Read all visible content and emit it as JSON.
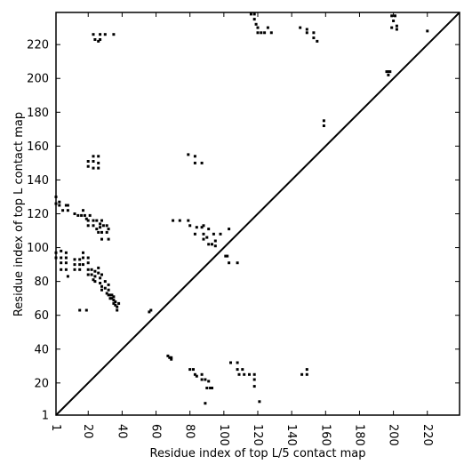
{
  "chart_data": {
    "type": "scatter",
    "xlabel": "Residue index of top L/5 contact map",
    "ylabel": "Residue index of top L contact map",
    "xlim": [
      1,
      239
    ],
    "ylim": [
      1,
      239
    ],
    "x_ticks": [
      1,
      20,
      40,
      60,
      80,
      100,
      120,
      140,
      160,
      180,
      200,
      220
    ],
    "y_ticks": [
      1,
      20,
      40,
      60,
      80,
      100,
      120,
      140,
      160,
      180,
      200,
      220
    ],
    "grid": false,
    "diagonal": true,
    "marker": "square",
    "series": [
      {
        "points": [
          [
            1,
            130
          ],
          [
            1,
            126
          ],
          [
            3,
            127
          ],
          [
            3,
            125
          ],
          [
            5,
            122
          ],
          [
            7,
            125
          ],
          [
            8,
            122
          ],
          [
            8,
            125
          ],
          [
            12,
            120
          ],
          [
            14,
            119
          ],
          [
            16,
            119
          ],
          [
            17,
            122
          ],
          [
            18,
            119
          ],
          [
            19,
            117
          ],
          [
            20,
            116
          ],
          [
            20,
            113
          ],
          [
            21,
            119
          ],
          [
            23,
            116
          ],
          [
            23,
            113
          ],
          [
            25,
            116
          ],
          [
            25,
            111
          ],
          [
            26,
            109
          ],
          [
            27,
            114
          ],
          [
            27,
            112
          ],
          [
            28,
            116
          ],
          [
            28,
            109
          ],
          [
            28,
            105
          ],
          [
            29,
            113
          ],
          [
            31,
            113
          ],
          [
            31,
            109
          ],
          [
            32,
            111
          ],
          [
            32,
            105
          ],
          [
            1,
            97
          ],
          [
            1,
            94
          ],
          [
            4,
            98
          ],
          [
            4,
            94
          ],
          [
            4,
            91
          ],
          [
            4,
            87
          ],
          [
            7,
            97
          ],
          [
            7,
            94
          ],
          [
            7,
            91
          ],
          [
            7,
            87
          ],
          [
            8,
            83
          ],
          [
            12,
            93
          ],
          [
            12,
            90
          ],
          [
            12,
            87
          ],
          [
            15,
            93
          ],
          [
            15,
            90
          ],
          [
            15,
            87
          ],
          [
            17,
            97
          ],
          [
            17,
            94
          ],
          [
            17,
            90
          ],
          [
            20,
            94
          ],
          [
            20,
            91
          ],
          [
            20,
            87
          ],
          [
            20,
            84
          ],
          [
            22,
            87
          ],
          [
            22,
            84
          ],
          [
            23,
            81
          ],
          [
            24,
            86
          ],
          [
            24,
            83
          ],
          [
            24,
            80
          ],
          [
            26,
            88
          ],
          [
            26,
            85
          ],
          [
            27,
            82
          ],
          [
            27,
            79
          ],
          [
            28,
            84
          ],
          [
            28,
            77
          ],
          [
            28,
            75
          ],
          [
            30,
            80
          ],
          [
            30,
            76
          ],
          [
            31,
            73
          ],
          [
            32,
            78
          ],
          [
            32,
            75
          ],
          [
            32,
            72
          ],
          [
            33,
            72
          ],
          [
            33,
            70
          ],
          [
            34,
            72
          ],
          [
            34,
            70
          ],
          [
            35,
            71
          ],
          [
            35,
            69
          ],
          [
            35,
            67
          ],
          [
            36,
            68
          ],
          [
            36,
            66
          ],
          [
            37,
            65
          ],
          [
            37,
            63
          ],
          [
            38,
            67
          ],
          [
            15,
            63
          ],
          [
            19,
            63
          ],
          [
            56,
            62
          ],
          [
            57,
            63
          ],
          [
            20,
            151
          ],
          [
            20,
            148
          ],
          [
            23,
            154
          ],
          [
            23,
            151
          ],
          [
            23,
            147
          ],
          [
            26,
            154
          ],
          [
            26,
            150
          ],
          [
            26,
            147
          ],
          [
            23,
            226
          ],
          [
            24,
            223
          ],
          [
            26,
            222
          ],
          [
            27,
            226
          ],
          [
            27,
            223
          ],
          [
            30,
            226
          ],
          [
            35,
            226
          ],
          [
            79,
            155
          ],
          [
            83,
            154
          ],
          [
            83,
            150
          ],
          [
            87,
            150
          ],
          [
            116,
            238
          ],
          [
            118,
            238
          ],
          [
            118,
            235
          ],
          [
            119,
            232
          ],
          [
            120,
            230
          ],
          [
            120,
            227
          ],
          [
            122,
            227
          ],
          [
            124,
            227
          ],
          [
            126,
            230
          ],
          [
            128,
            227
          ],
          [
            145,
            230
          ],
          [
            149,
            227
          ],
          [
            149,
            229
          ],
          [
            153,
            227
          ],
          [
            153,
            224
          ],
          [
            155,
            222
          ],
          [
            159,
            175
          ],
          [
            159,
            172
          ],
          [
            196,
            204
          ],
          [
            197,
            204
          ],
          [
            198,
            204
          ],
          [
            197,
            202
          ],
          [
            199,
            230
          ],
          [
            199,
            237
          ],
          [
            200,
            234
          ],
          [
            201,
            237
          ],
          [
            202,
            229
          ],
          [
            202,
            231
          ],
          [
            220,
            228
          ],
          [
            70,
            116
          ],
          [
            74,
            116
          ],
          [
            79,
            116
          ],
          [
            80,
            113
          ],
          [
            83,
            108
          ],
          [
            84,
            112
          ],
          [
            87,
            112
          ],
          [
            88,
            113
          ],
          [
            88,
            108
          ],
          [
            88,
            105
          ],
          [
            91,
            111
          ],
          [
            90,
            106
          ],
          [
            91,
            102
          ],
          [
            93,
            102
          ],
          [
            94,
            108
          ],
          [
            95,
            104
          ],
          [
            95,
            101
          ],
          [
            98,
            108
          ],
          [
            103,
            111
          ],
          [
            101,
            95
          ],
          [
            102,
            95
          ],
          [
            103,
            91
          ],
          [
            108,
            91
          ],
          [
            67,
            36
          ],
          [
            68,
            35
          ],
          [
            69,
            35
          ],
          [
            69,
            34
          ],
          [
            80,
            28
          ],
          [
            82,
            28
          ],
          [
            83,
            25
          ],
          [
            84,
            24
          ],
          [
            87,
            25
          ],
          [
            87,
            22
          ],
          [
            89,
            22
          ],
          [
            90,
            17
          ],
          [
            89,
            8
          ],
          [
            91,
            21
          ],
          [
            92,
            17
          ],
          [
            93,
            17
          ],
          [
            104,
            32
          ],
          [
            108,
            32
          ],
          [
            108,
            28
          ],
          [
            109,
            25
          ],
          [
            111,
            28
          ],
          [
            112,
            25
          ],
          [
            115,
            25
          ],
          [
            118,
            25
          ],
          [
            118,
            22
          ],
          [
            118,
            18
          ],
          [
            121,
            9
          ],
          [
            146,
            25
          ],
          [
            149,
            25
          ],
          [
            149,
            28
          ]
        ]
      }
    ]
  }
}
